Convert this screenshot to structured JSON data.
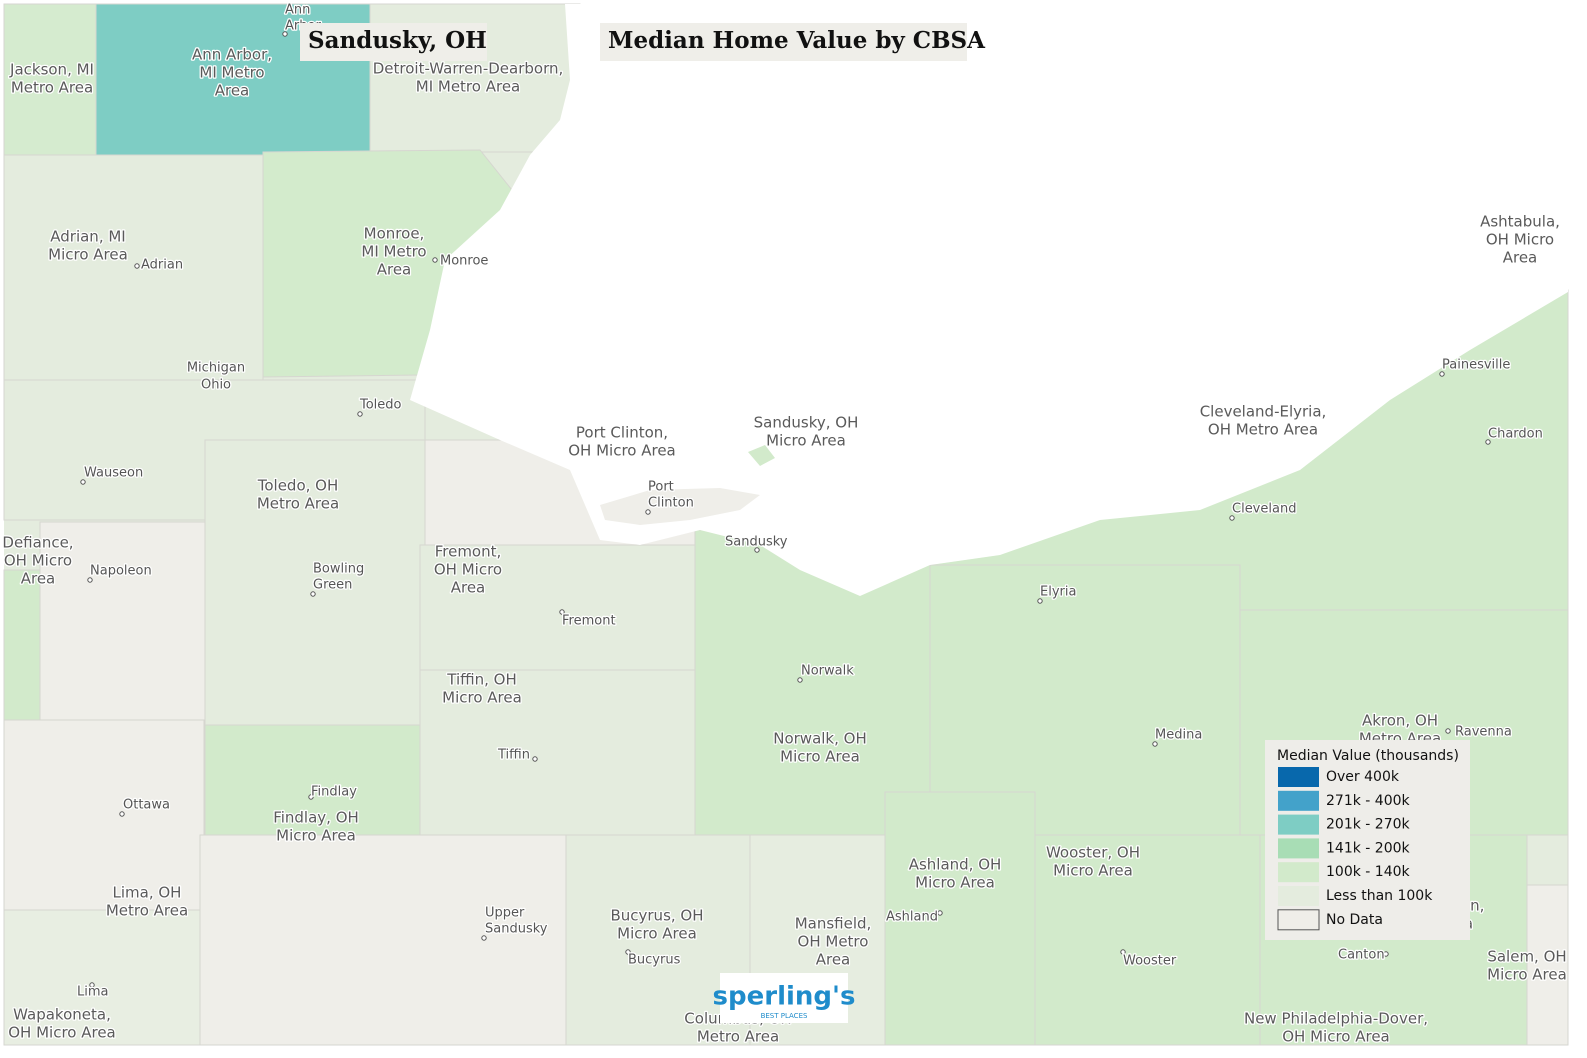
{
  "header": {
    "location": "Sandusky, OH",
    "title": "Median Home Value by CBSA"
  },
  "legend": {
    "title": "Median Value (thousands)",
    "items": [
      {
        "label": "Over 400k",
        "color": "#0868ac"
      },
      {
        "label": "271k - 400k",
        "color": "#43a2ca"
      },
      {
        "label": "201k - 270k",
        "color": "#7ecdc4"
      },
      {
        "label": "141k - 200k",
        "color": "#a8ddb5"
      },
      {
        "label": "100k - 140k",
        "color": "#d2eacb"
      },
      {
        "label": "Less than 100k",
        "color": "#e4ecde"
      },
      {
        "label": "No Data",
        "color": "#efeee9"
      }
    ]
  },
  "regions": [
    {
      "lines": [
        "Jackson, MI",
        "Metro Area"
      ]
    },
    {
      "lines": [
        "Ann Arbor,",
        "MI Metro",
        "Area"
      ]
    },
    {
      "lines": [
        "Detroit-Warren-Dearborn,",
        "MI Metro Area"
      ]
    },
    {
      "lines": [
        "Adrian, MI",
        "Micro Area"
      ]
    },
    {
      "lines": [
        "Monroe,",
        "MI Metro",
        "Area"
      ]
    },
    {
      "lines": [
        "Toledo, OH",
        "Metro Area"
      ]
    },
    {
      "lines": [
        "Defiance,",
        "OH Micro",
        "Area"
      ]
    },
    {
      "lines": [
        "Port Clinton,",
        "OH Micro Area"
      ]
    },
    {
      "lines": [
        "Sandusky, OH",
        "Micro Area"
      ]
    },
    {
      "lines": [
        "Fremont,",
        "OH Micro",
        "Area"
      ]
    },
    {
      "lines": [
        "Tiffin, OH",
        "Micro Area"
      ]
    },
    {
      "lines": [
        "Norwalk, OH",
        "Micro Area"
      ]
    },
    {
      "lines": [
        "Findlay, OH",
        "Micro Area"
      ]
    },
    {
      "lines": [
        "Lima, OH",
        "Metro Area"
      ]
    },
    {
      "lines": [
        "Wapakoneta,",
        "OH Micro Area"
      ]
    },
    {
      "lines": [
        "Bucyrus, OH",
        "Micro Area"
      ]
    },
    {
      "lines": [
        "Mansfield,",
        "OH Metro",
        "Area"
      ]
    },
    {
      "lines": [
        "Columbus, OH",
        "Metro Area"
      ]
    },
    {
      "lines": [
        "Ashland, OH",
        "Micro Area"
      ]
    },
    {
      "lines": [
        "Wooster, OH",
        "Micro Area"
      ]
    },
    {
      "lines": [
        "Akron, OH",
        "Metro Area"
      ]
    },
    {
      "lines": [
        "Ashtabula,",
        "OH Micro",
        "Area"
      ]
    },
    {
      "lines": [
        "Cleveland-Elyria,",
        "OH Metro Area"
      ]
    },
    {
      "lines": [
        "New Philadelphia-Dover,",
        "OH Micro Area"
      ]
    },
    {
      "lines": [
        "Salem, OH",
        "Micro Area"
      ]
    },
    {
      "lines": [
        "Canton-Massillon,",
        "OH Metro Area"
      ]
    }
  ],
  "cities": [
    {
      "lines": [
        "Ann",
        "Arbor"
      ]
    },
    {
      "lines": [
        "Adrian"
      ]
    },
    {
      "lines": [
        "Monroe"
      ]
    },
    {
      "lines": [
        "Toledo"
      ]
    },
    {
      "lines": [
        "Wauseon"
      ]
    },
    {
      "lines": [
        "Napoleon"
      ]
    },
    {
      "lines": [
        "Bowling",
        "Green"
      ]
    },
    {
      "lines": [
        "Port",
        "Clinton"
      ]
    },
    {
      "lines": [
        "Sandusky"
      ]
    },
    {
      "lines": [
        "Fremont"
      ]
    },
    {
      "lines": [
        "Norwalk"
      ]
    },
    {
      "lines": [
        "Tiffin"
      ]
    },
    {
      "lines": [
        "Findlay"
      ]
    },
    {
      "lines": [
        "Ottawa"
      ]
    },
    {
      "lines": [
        "Lima"
      ]
    },
    {
      "lines": [
        "Upper",
        "Sandusky"
      ]
    },
    {
      "lines": [
        "Bucyrus"
      ]
    },
    {
      "lines": [
        "Ashland"
      ]
    },
    {
      "lines": [
        "Wooster"
      ]
    },
    {
      "lines": [
        "Canton"
      ]
    },
    {
      "lines": [
        "Medina"
      ]
    },
    {
      "lines": [
        "Elyria"
      ]
    },
    {
      "lines": [
        "Cleveland"
      ]
    },
    {
      "lines": [
        "Painesville"
      ]
    },
    {
      "lines": [
        "Chardon"
      ]
    },
    {
      "lines": [
        "Ravenna"
      ]
    }
  ],
  "states": [
    "Michigan",
    "Ohio"
  ],
  "logo": {
    "name": "sperling's",
    "tagline": "BEST PLACES"
  }
}
